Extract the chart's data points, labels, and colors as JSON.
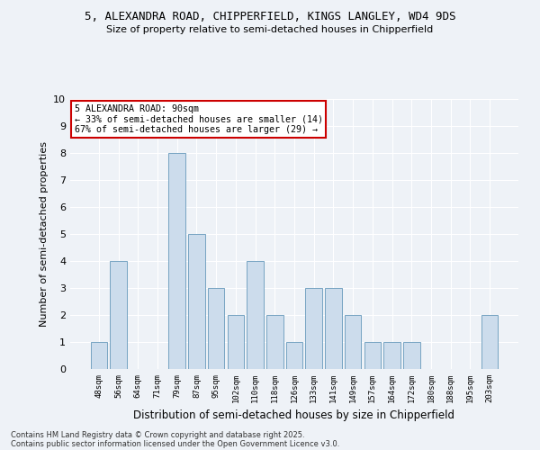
{
  "title_line1": "5, ALEXANDRA ROAD, CHIPPERFIELD, KINGS LANGLEY, WD4 9DS",
  "title_line2": "Size of property relative to semi-detached houses in Chipperfield",
  "xlabel": "Distribution of semi-detached houses by size in Chipperfield",
  "ylabel": "Number of semi-detached properties",
  "categories": [
    "48sqm",
    "56sqm",
    "64sqm",
    "71sqm",
    "79sqm",
    "87sqm",
    "95sqm",
    "102sqm",
    "110sqm",
    "118sqm",
    "126sqm",
    "133sqm",
    "141sqm",
    "149sqm",
    "157sqm",
    "164sqm",
    "172sqm",
    "180sqm",
    "188sqm",
    "195sqm",
    "203sqm"
  ],
  "values": [
    1,
    4,
    0,
    0,
    8,
    5,
    3,
    2,
    4,
    2,
    1,
    3,
    3,
    2,
    1,
    1,
    1,
    0,
    0,
    0,
    2
  ],
  "highlight_index": 5,
  "bar_color": "#ccdcec",
  "bar_edge_color": "#6699bb",
  "annotation_text_line1": "5 ALEXANDRA ROAD: 90sqm",
  "annotation_text_line2": "← 33% of semi-detached houses are smaller (14)",
  "annotation_text_line3": "67% of semi-detached houses are larger (29) →",
  "annotation_box_facecolor": "#ffffff",
  "annotation_box_edgecolor": "#cc0000",
  "ylim": [
    0,
    10
  ],
  "yticks": [
    0,
    1,
    2,
    3,
    4,
    5,
    6,
    7,
    8,
    9,
    10
  ],
  "bg_color": "#eef2f7",
  "grid_color": "#ffffff",
  "footer_line1": "Contains HM Land Registry data © Crown copyright and database right 2025.",
  "footer_line2": "Contains public sector information licensed under the Open Government Licence v3.0."
}
